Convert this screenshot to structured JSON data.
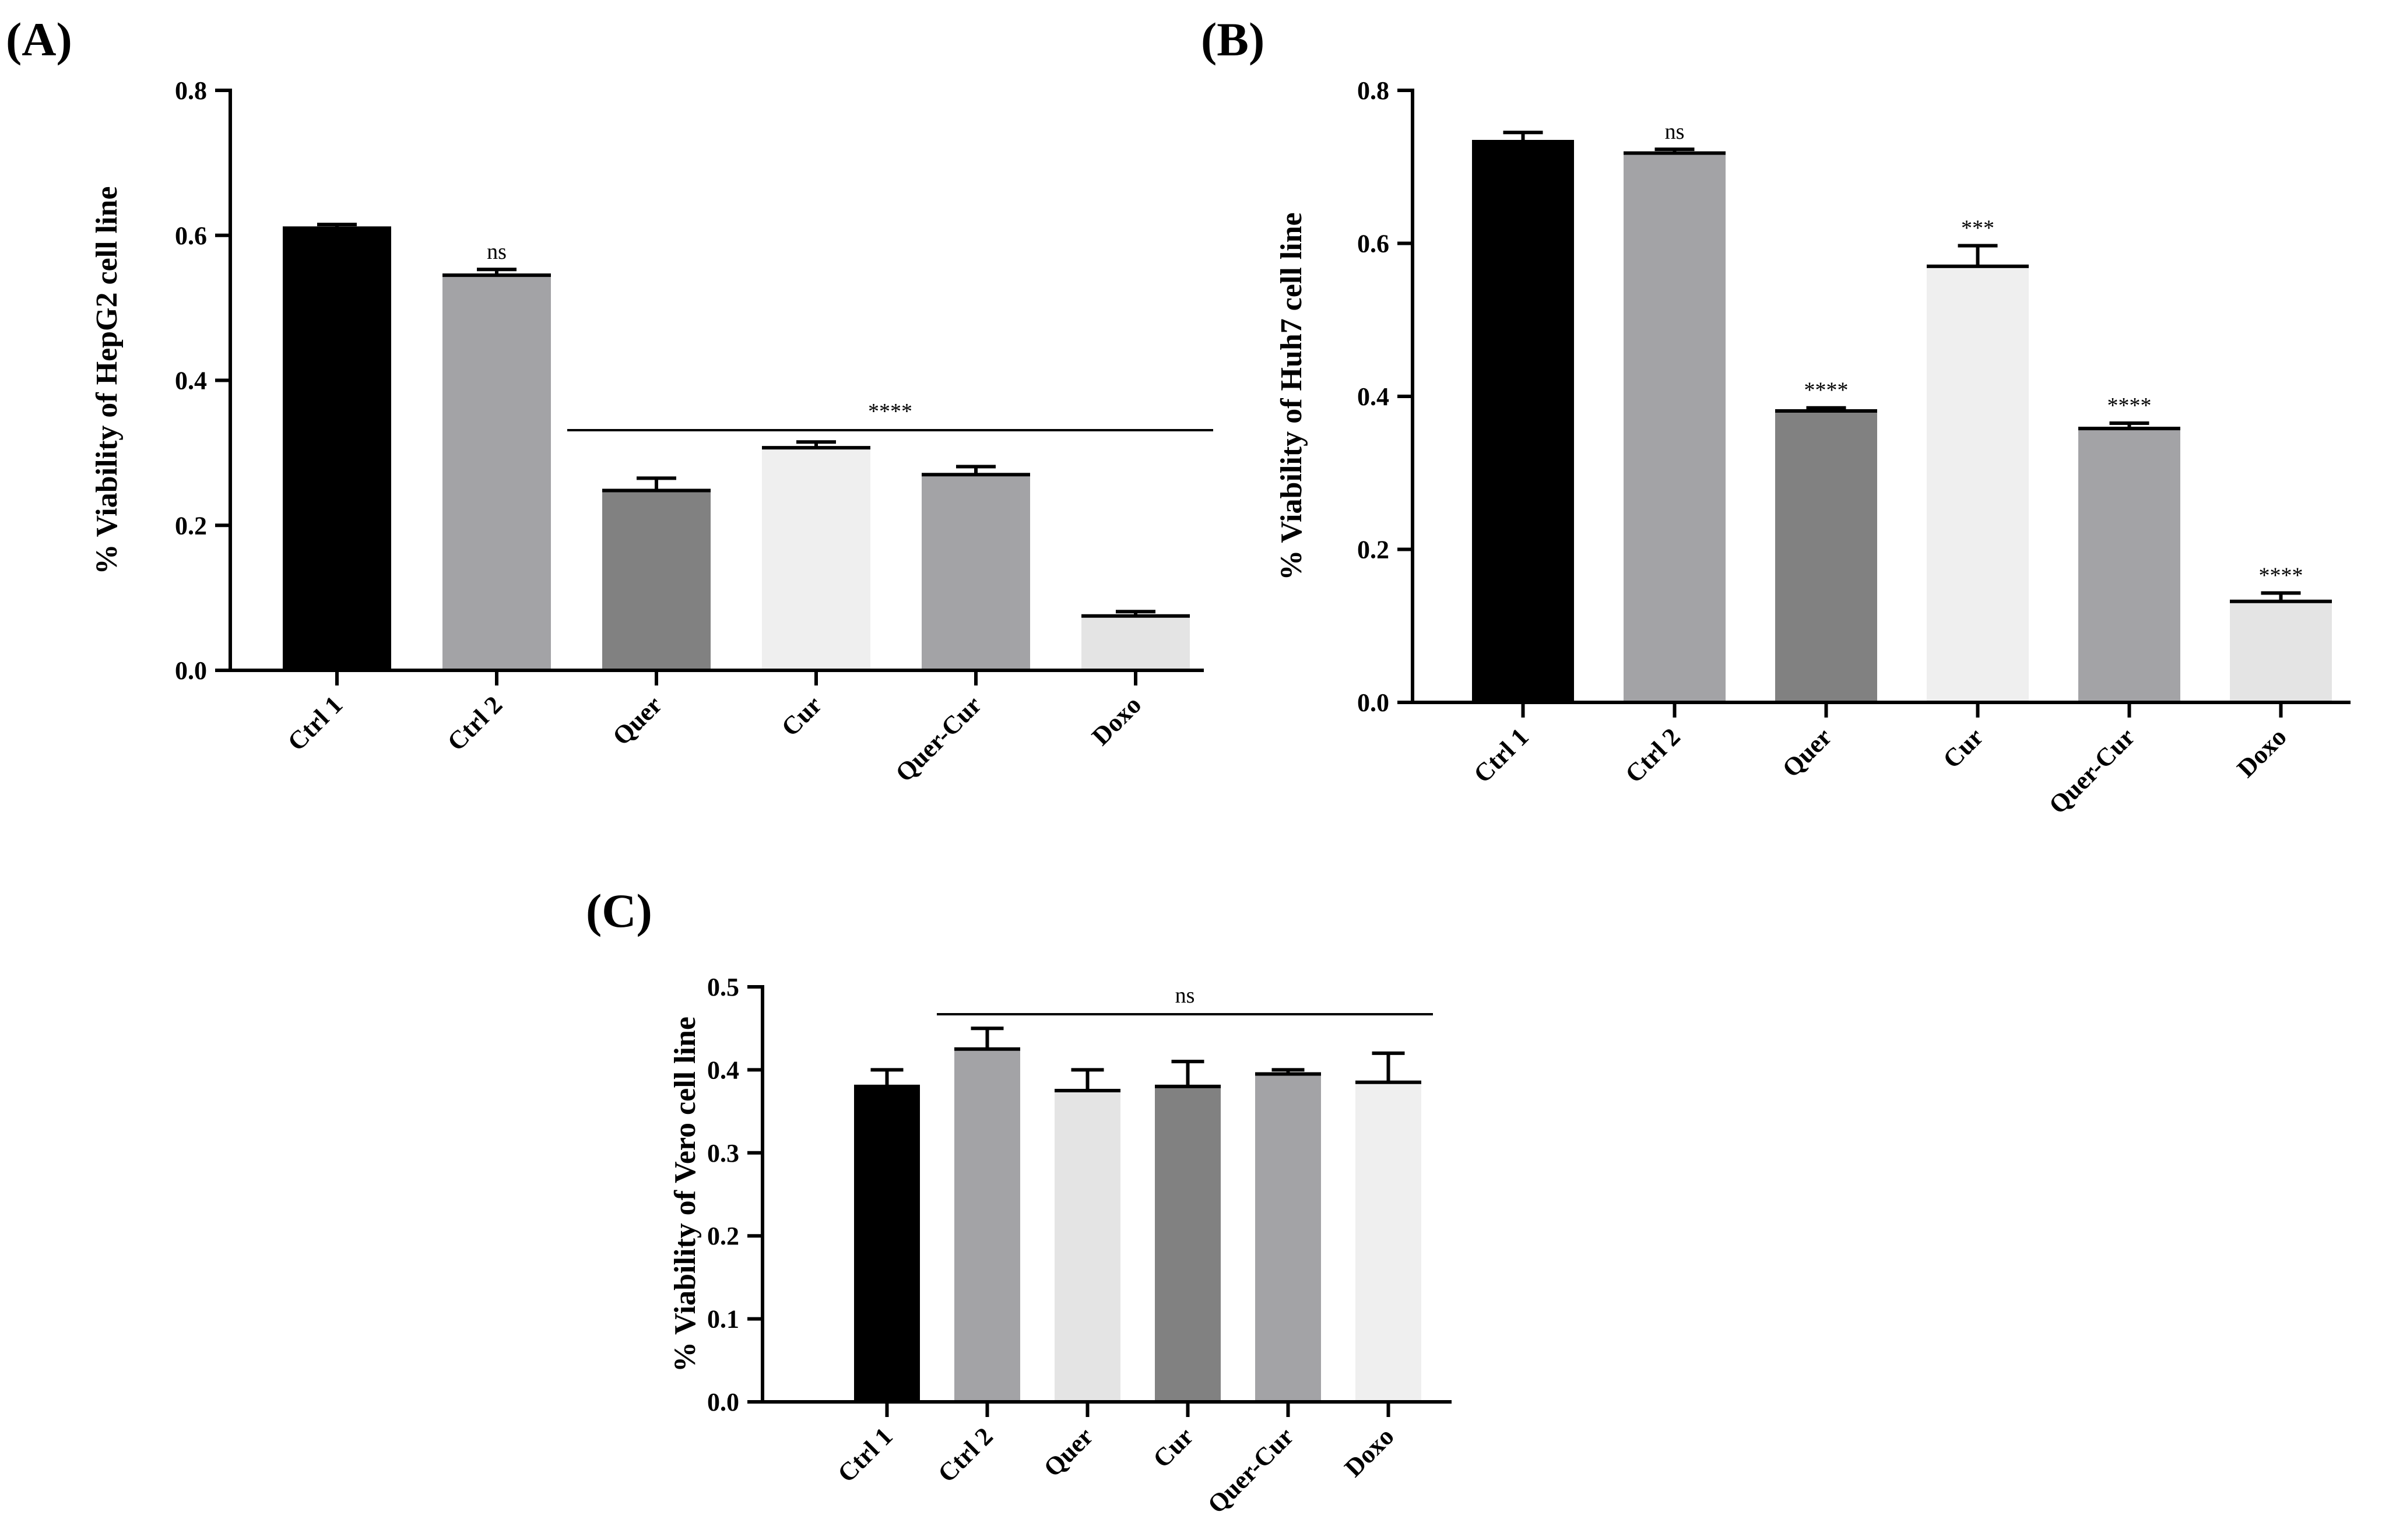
{
  "chart_data": [
    {
      "panel": "(A)",
      "type": "bar",
      "title": "",
      "xlabel": "",
      "ylabel": "% Viability of HepG2 cell line",
      "ylim": [
        0,
        0.8
      ],
      "yticks": [
        "0.0",
        "0.2",
        "0.4",
        "0.6",
        "0.8"
      ],
      "categories": [
        "Ctrl 1",
        "Ctrl 2",
        "Quer",
        "Cur",
        "Quer-Cur",
        "Doxo"
      ],
      "values": [
        0.61,
        0.545,
        0.248,
        0.307,
        0.27,
        0.075
      ],
      "errors": [
        0.005,
        0.008,
        0.017,
        0.008,
        0.011,
        0.006
      ],
      "colors": [
        "#000000",
        "#a3a3a6",
        "#818181",
        "#efefef",
        "#a3a3a6",
        "#e4e4e4"
      ],
      "bar_annotations": [
        "",
        "ns",
        "",
        "",
        "",
        ""
      ],
      "group_annotation": {
        "label": "****",
        "from": "Quer",
        "to": "Doxo"
      }
    },
    {
      "panel": "(B)",
      "type": "bar",
      "title": "",
      "xlabel": "",
      "ylabel": "% Viability of Huh7 cell line",
      "ylim": [
        0,
        0.8
      ],
      "yticks": [
        "0.0",
        "0.2",
        "0.4",
        "0.6",
        "0.8"
      ],
      "categories": [
        "Ctrl 1",
        "Ctrl 2",
        "Quer",
        "Cur",
        "Quer-Cur",
        "Doxo"
      ],
      "values": [
        0.733,
        0.718,
        0.381,
        0.57,
        0.358,
        0.132
      ],
      "errors": [
        0.012,
        0.005,
        0.004,
        0.027,
        0.007,
        0.011
      ],
      "colors": [
        "#000000",
        "#a3a3a6",
        "#818181",
        "#efefef",
        "#a3a3a6",
        "#e4e4e4"
      ],
      "bar_annotations": [
        "",
        "ns",
        "****",
        "***",
        "****",
        "****"
      ],
      "group_annotation": null
    },
    {
      "panel": "(C)",
      "type": "bar",
      "title": "",
      "xlabel": "",
      "ylabel": "% Viability of Vero cell line",
      "ylim": [
        0,
        0.5
      ],
      "yticks": [
        "0.0",
        "0.1",
        "0.2",
        "0.3",
        "0.4",
        "0.5"
      ],
      "categories": [
        "Ctrl 1",
        "Ctrl 2",
        "Quer",
        "Cur",
        "Quer-Cur",
        "Doxo"
      ],
      "values": [
        0.38,
        0.425,
        0.375,
        0.38,
        0.395,
        0.385
      ],
      "errors": [
        0.02,
        0.025,
        0.025,
        0.03,
        0.005,
        0.035
      ],
      "colors": [
        "#000000",
        "#a3a3a6",
        "#e4e4e4",
        "#818181",
        "#a3a3a6",
        "#efefef"
      ],
      "bar_annotations": [
        "",
        "",
        "",
        "",
        "",
        ""
      ],
      "group_annotation": {
        "label": "ns",
        "from": "Ctrl 2",
        "to": "Doxo"
      }
    }
  ]
}
